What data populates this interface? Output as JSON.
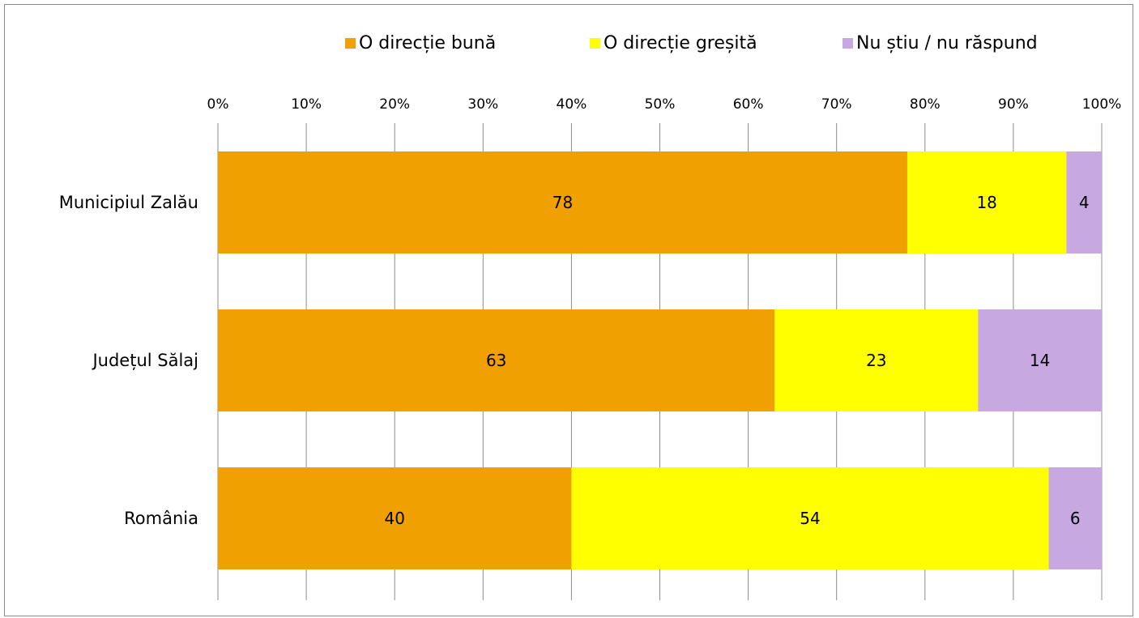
{
  "chart_data": {
    "type": "bar",
    "orientation": "horizontal",
    "stacked": true,
    "percent_scale": true,
    "categories": [
      "Municipiul Zalău",
      "Județul Sălaj",
      "România"
    ],
    "series": [
      {
        "name": "O direcție bună",
        "color": "#F0A000",
        "values": [
          78,
          63,
          40
        ]
      },
      {
        "name": "O direcție greșită",
        "color": "#FFFF00",
        "values": [
          18,
          23,
          54
        ]
      },
      {
        "name": "Nu știu / nu răspund",
        "color": "#C8A8E0",
        "values": [
          4,
          14,
          6
        ]
      }
    ],
    "x_ticks": [
      "0%",
      "10%",
      "20%",
      "30%",
      "40%",
      "50%",
      "60%",
      "70%",
      "80%",
      "90%",
      "100%"
    ],
    "xlim": [
      0,
      100
    ],
    "grid": true,
    "legend_position": "top",
    "data_labels": true
  }
}
